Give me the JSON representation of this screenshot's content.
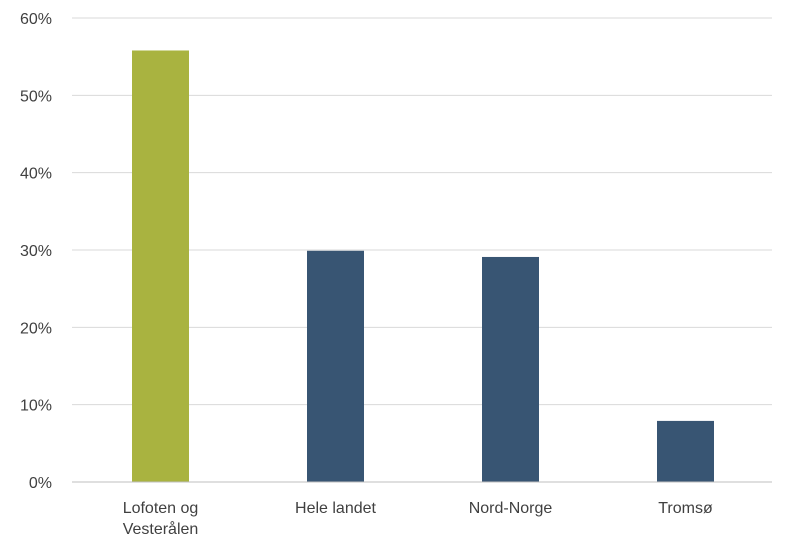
{
  "chart_data": {
    "type": "bar",
    "categories": [
      "Lofoten og Vesterålen",
      "Hele landet",
      "Nord-Norge",
      "Tromsø"
    ],
    "category_label_lines": [
      [
        "Lofoten og",
        "Vesterålen"
      ],
      [
        "Hele landet"
      ],
      [
        "Nord-Norge"
      ],
      [
        "Tromsø"
      ]
    ],
    "values": [
      0.558,
      0.299,
      0.291,
      0.079
    ],
    "bar_colors": [
      "#a9b340",
      "#385573",
      "#385573",
      "#385573"
    ],
    "ylim": [
      0,
      0.6
    ],
    "yticks": [
      0,
      0.1,
      0.2,
      0.3,
      0.4,
      0.5,
      0.6
    ],
    "ytick_labels": [
      "0%",
      "10%",
      "20%",
      "30%",
      "40%",
      "50%",
      "60%"
    ],
    "title": "",
    "xlabel": "",
    "ylabel": "",
    "grid": true,
    "legend": "none"
  }
}
